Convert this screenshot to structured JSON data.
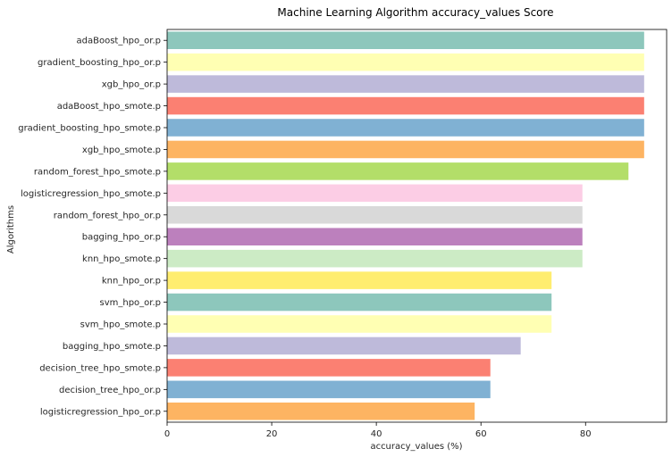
{
  "chart_data": {
    "type": "bar",
    "orientation": "horizontal",
    "title": "Machine Learning Algorithm accuracy_values Score",
    "xlabel": "accuracy_values (%)",
    "ylabel": "Algorithms",
    "xlim": [
      0,
      95.5
    ],
    "xticks": [
      "0",
      "20",
      "40",
      "60",
      "80"
    ],
    "grid": false,
    "categories": [
      "adaBoost_hpo_or.p",
      "gradient_boosting_hpo_or.p",
      "xgb_hpo_or.p",
      "adaBoost_hpo_smote.p",
      "gradient_boosting_hpo_smote.p",
      "xgb_hpo_smote.p",
      "random_forest_hpo_smote.p",
      "logisticregression_hpo_smote.p",
      "random_forest_hpo_or.p",
      "bagging_hpo_or.p",
      "knn_hpo_smote.p",
      "knn_hpo_or.p",
      "svm_hpo_or.p",
      "svm_hpo_smote.p",
      "bagging_hpo_smote.p",
      "decision_tree_hpo_smote.p",
      "decision_tree_hpo_or.p",
      "logisticregression_hpo_or.p"
    ],
    "values": [
      91.2,
      91.2,
      91.2,
      91.2,
      91.2,
      91.2,
      88.2,
      79.4,
      79.4,
      79.4,
      79.4,
      73.5,
      73.5,
      73.5,
      67.6,
      61.8,
      61.8,
      58.8
    ],
    "colors": [
      "#8dc7bc",
      "#ffffb3",
      "#bebada",
      "#fb8072",
      "#80b1d3",
      "#fdb462",
      "#b3de69",
      "#fccde5",
      "#d9d9d9",
      "#bc80bd",
      "#ccebc5",
      "#ffed6f",
      "#8dc7bc",
      "#ffffb3",
      "#bebada",
      "#fb8072",
      "#80b1d3",
      "#fdb462"
    ]
  }
}
